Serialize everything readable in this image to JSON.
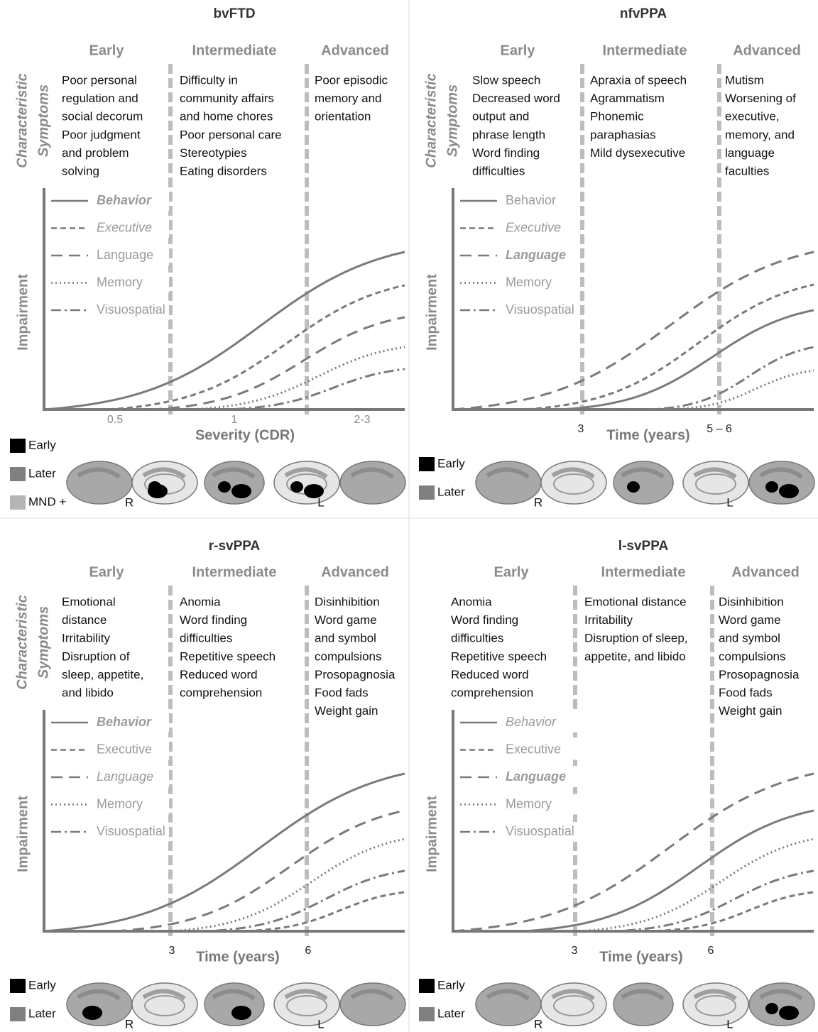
{
  "panels": [
    {
      "title": "bvFTD",
      "stages": [
        "Early",
        "Intermediate",
        "Advanced"
      ],
      "side_label": [
        "Characteristic",
        "Symptoms"
      ],
      "symptoms": [
        [
          "Poor personal",
          "regulation and",
          "social decorum",
          "Poor judgment",
          "and problem",
          "solving"
        ],
        [
          "Difficulty in",
          "community affairs",
          "and home chores",
          "Poor personal care",
          "Stereotypies",
          "Eating disorders"
        ],
        [
          "Poor episodic",
          "memory and",
          "orientation"
        ]
      ],
      "legend": [
        "Behavior",
        "Executive",
        "Language",
        "Memory",
        "Visuospatial"
      ],
      "y_label": "Impairment",
      "x_ticks": [
        "0.5",
        "1",
        "2-3"
      ],
      "x_label": "Severity (CDR)",
      "brain_legend": [
        "Early",
        "Later",
        "MND +"
      ],
      "sides": [
        "R",
        "L"
      ]
    },
    {
      "title": "nfvPPA",
      "stages": [
        "Early",
        "Intermediate",
        "Advanced"
      ],
      "side_label": [
        "Characteristic",
        "Symptoms"
      ],
      "symptoms": [
        [
          "Slow speech",
          "Decreased word",
          "output and",
          "phrase length",
          "Word finding",
          "difficulties"
        ],
        [
          "Apraxia of speech",
          "Agrammatism",
          "Phonemic",
          "paraphasias",
          "Mild dysexecutive"
        ],
        [
          "Mutism",
          "Worsening of",
          "executive,",
          "memory, and",
          "language",
          "faculties"
        ]
      ],
      "legend": [
        "Behavior",
        "Executive",
        "Language",
        "Memory",
        "Visuospatial"
      ],
      "y_label": "Impairment",
      "x_ticks": [
        "3",
        "5 – 6"
      ],
      "x_label": "Time (years)",
      "brain_legend": [
        "Early",
        "Later"
      ],
      "sides": [
        "R",
        "L"
      ]
    },
    {
      "title": "r-svPPA",
      "stages": [
        "Early",
        "Intermediate",
        "Advanced"
      ],
      "side_label": [
        "Characteristic",
        "Symptoms"
      ],
      "symptoms": [
        [
          "Emotional",
          "distance",
          "Irritability",
          "Disruption of",
          "sleep, appetite,",
          "and libido"
        ],
        [
          "Anomia",
          "Word finding",
          "difficulties",
          "Repetitive speech",
          "Reduced word",
          "comprehension"
        ],
        [
          "Disinhibition",
          "Word game",
          "and symbol",
          "compulsions",
          "Prosopagnosia",
          "Food fads",
          "Weight gain"
        ]
      ],
      "legend": [
        "Behavior",
        "Executive",
        "Language",
        "Memory",
        "Visuospatial"
      ],
      "y_label": "Impairment",
      "x_ticks": [
        "3",
        "6"
      ],
      "x_label": "Time (years)",
      "brain_legend": [
        "Early",
        "Later"
      ],
      "sides": [
        "R",
        "L"
      ]
    },
    {
      "title": "l-svPPA",
      "stages": [
        "Early",
        "Intermediate",
        "Advanced"
      ],
      "symptoms": [
        [
          "Anomia",
          "Word finding",
          "difficulties",
          "Repetitive speech",
          "Reduced word",
          "comprehension"
        ],
        [
          "Emotional distance",
          "Irritability",
          "Disruption of sleep,",
          "appetite, and libido"
        ],
        [
          "Disinhibition",
          "Word game",
          "and symbol",
          "compulsions",
          "Prosopagnosia",
          "Food fads",
          "Weight gain"
        ]
      ],
      "legend": [
        "Behavior",
        "Executive",
        "Language",
        "Memory",
        "Visuospatial"
      ],
      "y_label": "Impairment",
      "x_ticks": [
        "3",
        "6"
      ],
      "x_label": "Time (years)",
      "brain_legend": [
        "Early",
        "Later"
      ],
      "sides": [
        "R",
        "L"
      ]
    }
  ]
}
